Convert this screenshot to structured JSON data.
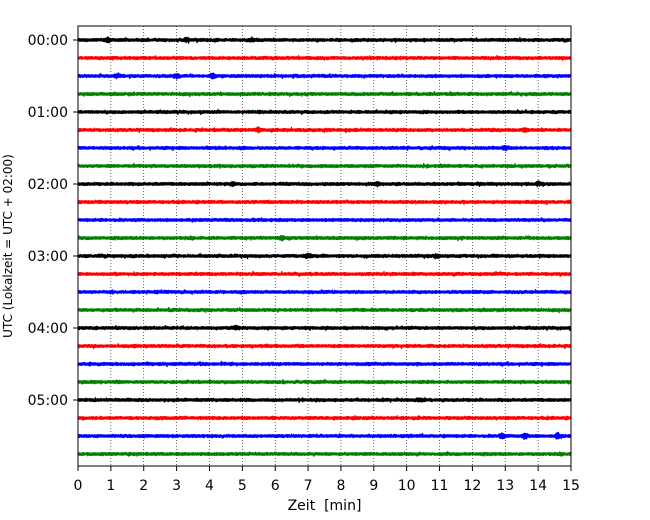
{
  "chart_data": {
    "type": "line",
    "title": "",
    "xlabel": "Zeit  [min]",
    "ylabel": "UTC (Lokalzeit = UTC + 02:00)",
    "xlim": [
      0,
      15
    ],
    "x_ticks": [
      "0",
      "1",
      "2",
      "3",
      "4",
      "5",
      "6",
      "7",
      "8",
      "9",
      "10",
      "11",
      "12",
      "13",
      "14",
      "15"
    ],
    "y_ticks": [
      "00:00",
      "01:00",
      "02:00",
      "03:00",
      "04:00",
      "05:00"
    ],
    "grid": {
      "x": true,
      "y": false,
      "style": "dotted"
    },
    "trace_count": 24,
    "trace_interval_minutes": 15,
    "trace_colors": [
      "#000000",
      "#ff0000",
      "#0000ff",
      "#008000"
    ],
    "bursts": [
      {
        "trace": 0,
        "x": 0.9,
        "amp": 1.6
      },
      {
        "trace": 0,
        "x": 3.3,
        "amp": 1.4
      },
      {
        "trace": 0,
        "x": 5.3,
        "amp": 1.5
      },
      {
        "trace": 2,
        "x": 1.2,
        "amp": 1.5
      },
      {
        "trace": 2,
        "x": 3.0,
        "amp": 1.6
      },
      {
        "trace": 2,
        "x": 4.1,
        "amp": 1.7
      },
      {
        "trace": 5,
        "x": 5.5,
        "amp": 1.5
      },
      {
        "trace": 5,
        "x": 13.6,
        "amp": 1.4
      },
      {
        "trace": 6,
        "x": 13.0,
        "amp": 1.3
      },
      {
        "trace": 8,
        "x": 4.7,
        "amp": 1.4
      },
      {
        "trace": 8,
        "x": 9.1,
        "amp": 1.5
      },
      {
        "trace": 8,
        "x": 14.0,
        "amp": 1.4
      },
      {
        "trace": 11,
        "x": 6.2,
        "amp": 1.5
      },
      {
        "trace": 12,
        "x": 7.0,
        "amp": 1.4
      },
      {
        "trace": 12,
        "x": 10.9,
        "amp": 1.5
      },
      {
        "trace": 16,
        "x": 4.8,
        "amp": 1.4
      },
      {
        "trace": 20,
        "x": 10.4,
        "amp": 1.6
      },
      {
        "trace": 22,
        "x": 12.9,
        "amp": 2.0
      },
      {
        "trace": 22,
        "x": 13.6,
        "amp": 2.3
      },
      {
        "trace": 22,
        "x": 14.6,
        "amp": 2.2
      }
    ]
  }
}
